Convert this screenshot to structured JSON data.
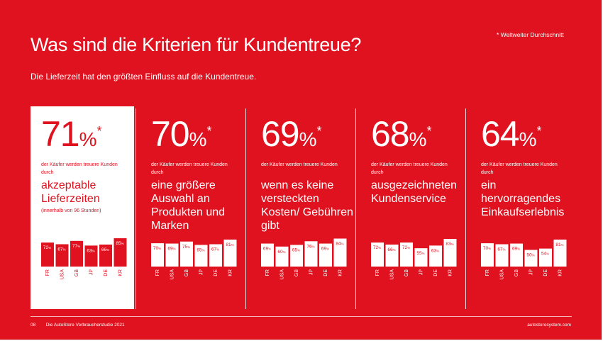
{
  "title": "Was sind die Kriterien für Kundentreue?",
  "subtitle": "Die Lieferzeit hat den größten Einfluss auf die Kundentreue.",
  "footnote": "* Weltweiter Durchschnitt",
  "footer": {
    "page": "08",
    "study": "Die AutoStore Verbraucherstudie 2021",
    "url": "autostoresystem.com"
  },
  "colors": {
    "background": "#e0121f",
    "foreground": "#ffffff"
  },
  "pct_sign": "%",
  "star": "*",
  "chart_data": [
    {
      "type": "bar",
      "value": "71",
      "intro": "der Käufer werden treuere Kunden durch",
      "criterion": "akzeptable Lieferzeiten",
      "note": "(innerhalb von 96 Stunden)",
      "categories": [
        "FR",
        "USA",
        "GB",
        "JP",
        "DE",
        "KR"
      ],
      "values": [
        72,
        67,
        77,
        63,
        66,
        85
      ],
      "highlighted": true
    },
    {
      "type": "bar",
      "value": "70",
      "intro": "der Käufer werden treuere Kunden durch",
      "criterion": "eine größere Auswahl an Produkten und Marken",
      "categories": [
        "FR",
        "USA",
        "GB",
        "JP",
        "DE",
        "KR"
      ],
      "values": [
        70,
        69,
        75,
        65,
        67,
        81
      ]
    },
    {
      "type": "bar",
      "value": "69",
      "intro": "der Käufer werden treuere Kunden",
      "criterion": "wenn es keine versteckten Kosten/ Gebühren gibt",
      "categories": [
        "FR",
        "USA",
        "GB",
        "JP",
        "DE",
        "KR"
      ],
      "values": [
        69,
        60,
        65,
        76,
        69,
        84
      ]
    },
    {
      "type": "bar",
      "value": "68",
      "intro": "der Käufer werden treuere Kunden durch",
      "criterion": "ausgezeichneten Kundenservice",
      "categories": [
        "FR",
        "USA",
        "GB",
        "JP",
        "DE",
        "KR"
      ],
      "values": [
        72,
        66,
        72,
        55,
        63,
        83
      ]
    },
    {
      "type": "bar",
      "value": "64",
      "intro": "der Käufer werden treuere Kunden durch",
      "criterion": "ein hervorragendes Einkaufserlebnis",
      "categories": [
        "FR",
        "USA",
        "GB",
        "JP",
        "DE",
        "KR"
      ],
      "values": [
        70,
        67,
        69,
        50,
        54,
        81
      ]
    }
  ]
}
